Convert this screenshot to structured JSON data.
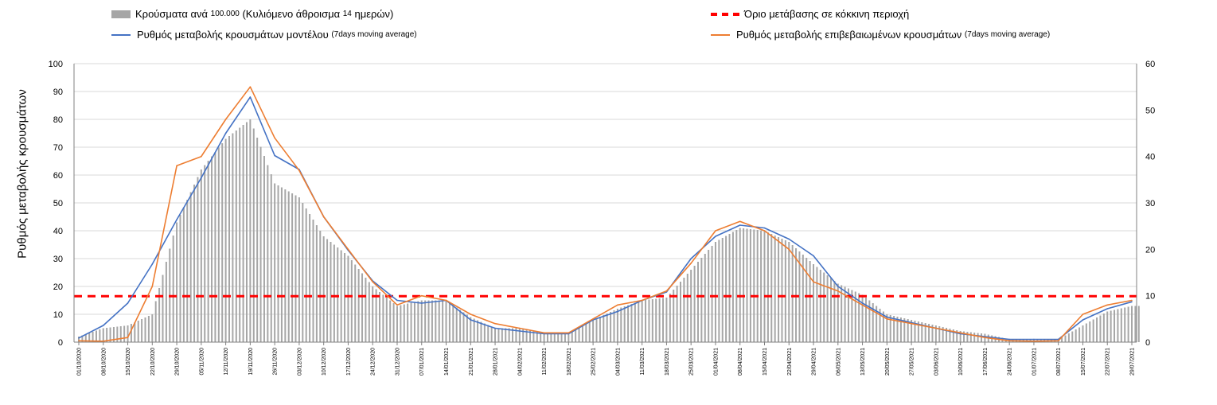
{
  "legend": {
    "bars_label_a": "Κρούσματα ανά",
    "bars_label_b": "100.000",
    "bars_label_c": "(Κυλιόμενο άθροισμα",
    "bars_label_d": "14",
    "bars_label_e": "ημερών)",
    "model_label": "Ρυθμός μεταβολής κρουσμάτων μοντέλου",
    "model_suffix": "(7days moving average)",
    "threshold_label": "Όριο μετάβασης σε κόκκινη περιοχή",
    "confirmed_label": "Ρυθμός μεταβολής επιβεβαιωμένων κρουσμάτων",
    "confirmed_suffix": "(7days moving average)"
  },
  "colors": {
    "bars": "#a6a6a6",
    "model": "#4472c4",
    "confirmed": "#ed7d31",
    "threshold": "#ff0000",
    "grid": "#d9d9d9"
  },
  "chart_data": {
    "type": "bar",
    "title": "",
    "xlabel": "",
    "ylabel": "Ρυθμός μεταβολής κρουσμάτων",
    "ylim": [
      0,
      100
    ],
    "y2lim": [
      0,
      60
    ],
    "yticks": [
      "0",
      "10",
      "20",
      "30",
      "40",
      "50",
      "60",
      "70",
      "80",
      "90",
      "100"
    ],
    "y2ticks": [
      "0",
      "10",
      "20",
      "30",
      "40",
      "50",
      "60"
    ],
    "grid": true,
    "threshold": 16.5,
    "categories": [
      "01/10/2020",
      "08/10/2020",
      "15/10/2020",
      "22/10/2020",
      "29/10/2020",
      "05/11/2020",
      "12/11/2020",
      "19/11/2020",
      "26/11/2020",
      "03/12/2020",
      "10/12/2020",
      "17/12/2020",
      "24/12/2020",
      "31/12/2020",
      "07/01/2021",
      "14/01/2021",
      "21/01/2021",
      "28/01/2021",
      "04/02/2021",
      "11/02/2021",
      "18/02/2021",
      "25/02/2021",
      "04/03/2021",
      "11/03/2021",
      "18/03/2021",
      "25/03/2021",
      "01/04/2021",
      "08/04/2021",
      "15/04/2021",
      "22/04/2021",
      "29/04/2021",
      "06/05/2021",
      "13/05/2021",
      "20/05/2021",
      "27/05/2021",
      "03/06/2021",
      "10/06/2021",
      "17/06/2021",
      "24/06/2021",
      "01/07/2021",
      "08/07/2021",
      "15/07/2021",
      "22/07/2021",
      "29/07/2021"
    ],
    "series": [
      {
        "name": "Κρούσματα ανά 100.000 (Κυλιόμενο άθροισμα 14 ημερών)",
        "type": "bar",
        "values": [
          2,
          5,
          6,
          10,
          43,
          62,
          73,
          80,
          57,
          52,
          38,
          31,
          20,
          13,
          15,
          15,
          9,
          5,
          5,
          3,
          3,
          8,
          12,
          15,
          16,
          26,
          36,
          41,
          40,
          36,
          28,
          21,
          17,
          10,
          8,
          6,
          4,
          3,
          1,
          1,
          1,
          6,
          11,
          13
        ]
      },
      {
        "name": "Ρυθμός μεταβολής κρουσμάτων μοντέλου",
        "type": "line",
        "values": [
          1.5,
          6,
          14,
          28,
          44,
          59,
          75,
          88,
          67,
          62,
          45,
          33,
          22,
          15,
          14,
          15,
          8,
          5,
          4,
          3,
          3,
          8,
          11,
          15,
          18,
          30,
          38,
          42,
          41,
          37,
          31,
          20,
          14,
          9,
          7,
          5,
          3,
          2,
          1,
          1,
          1,
          8,
          12,
          14.5
        ]
      },
      {
        "name": "Ρυθμός μεταβολής επιβεβαιωμένων κρουσμάτων",
        "type": "line",
        "axis": "secondary",
        "values": [
          0.3,
          0.2,
          1,
          12,
          38,
          40,
          48,
          55,
          44,
          37,
          27,
          20,
          13,
          8,
          10,
          9,
          6,
          4,
          3,
          2,
          2,
          5,
          8,
          9,
          11,
          17,
          24,
          26,
          24,
          20,
          13,
          11,
          8,
          5,
          4,
          3,
          2,
          1,
          0.3,
          0.2,
          0.3,
          6,
          8,
          9
        ]
      }
    ]
  }
}
